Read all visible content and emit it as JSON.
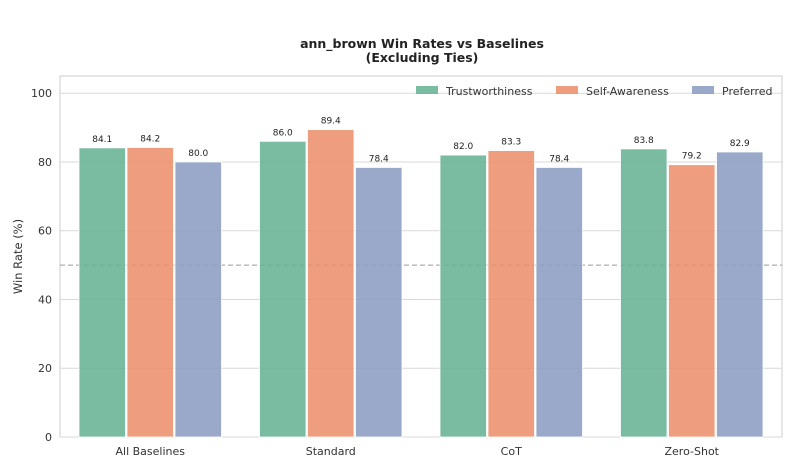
{
  "chart_data": {
    "type": "bar",
    "title": "ann_brown Win Rates vs Baselines",
    "subtitle": "(Excluding Ties)",
    "xlabel": "",
    "ylabel": "Win Rate (%)",
    "ylim": [
      0,
      105
    ],
    "yticks": [
      0,
      20,
      40,
      60,
      80,
      100
    ],
    "reference_line": 50,
    "grid": true,
    "legend_position": "top-right",
    "categories": [
      "All Baselines",
      "Standard",
      "CoT",
      "Zero-Shot"
    ],
    "series": [
      {
        "name": "Trustworthiness",
        "color": "#66b395",
        "values": [
          84.1,
          86.0,
          82.0,
          83.8
        ]
      },
      {
        "name": "Self-Awareness",
        "color": "#ec8f6c",
        "values": [
          84.2,
          89.4,
          83.3,
          79.2
        ]
      },
      {
        "name": "Preferred",
        "color": "#8c9dc3",
        "values": [
          80.0,
          78.4,
          78.4,
          82.9
        ]
      }
    ]
  }
}
